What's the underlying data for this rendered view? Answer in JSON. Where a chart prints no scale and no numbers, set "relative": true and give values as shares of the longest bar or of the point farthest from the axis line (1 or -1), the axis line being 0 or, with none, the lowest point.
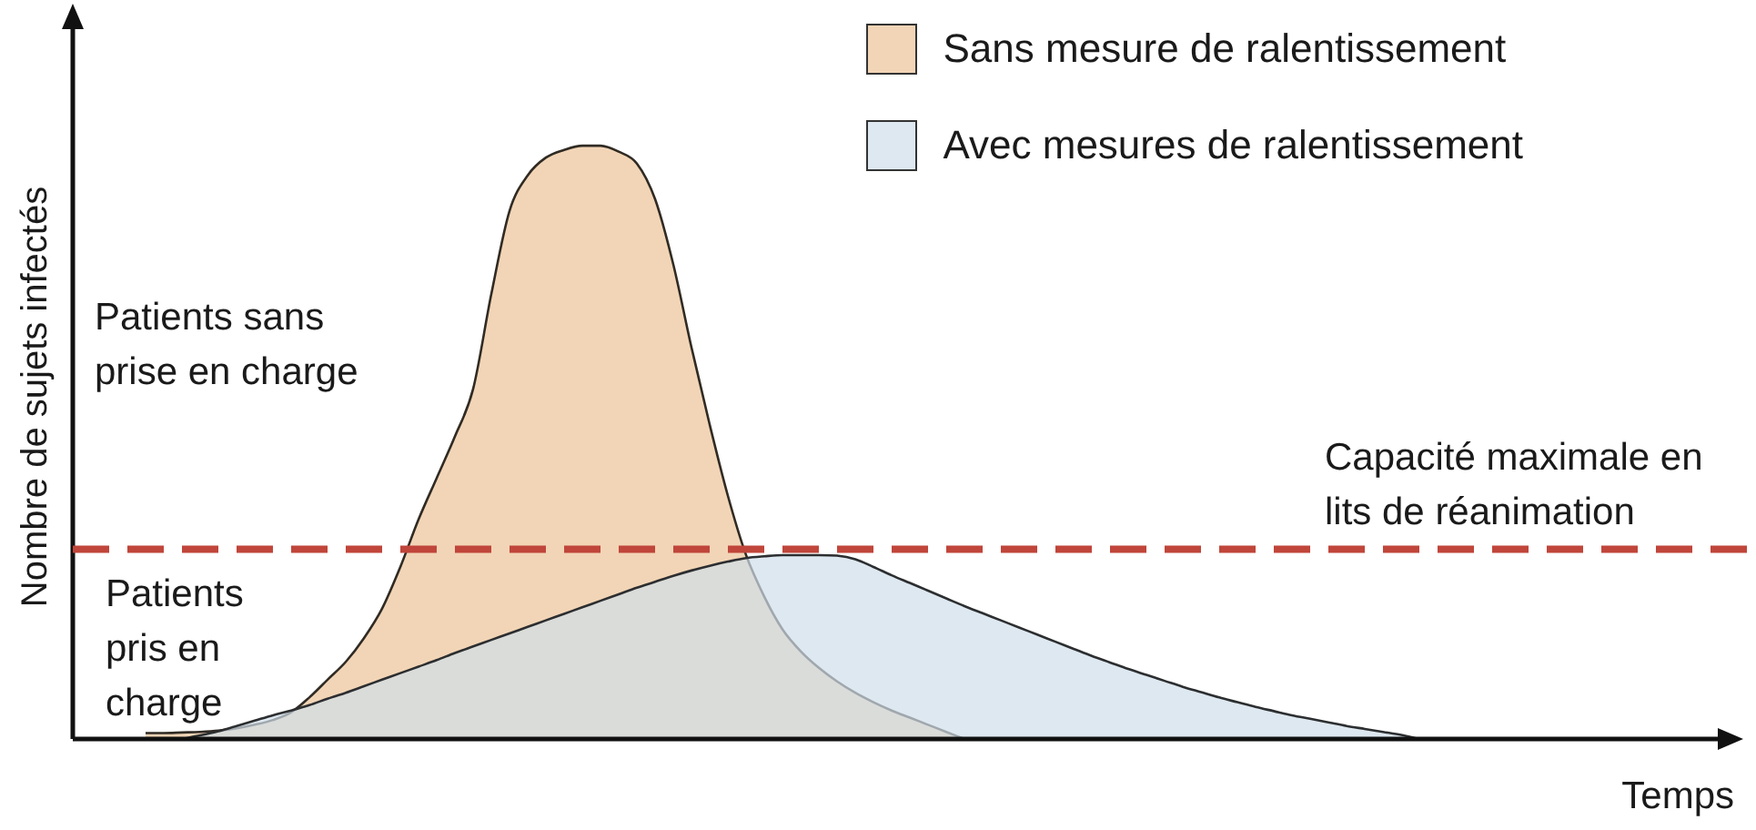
{
  "chart_data": {
    "type": "area",
    "relative": true,
    "categories": [
      null,
      null,
      null,
      null,
      null,
      null,
      null,
      null,
      null,
      null,
      null,
      null,
      null,
      null,
      null,
      null,
      null,
      null,
      null,
      null,
      null,
      null,
      null,
      null,
      null,
      null,
      null,
      null,
      null,
      null,
      null,
      null,
      null,
      null,
      null,
      null,
      null,
      null,
      null,
      null,
      null,
      null,
      null,
      null,
      null,
      null,
      null,
      null,
      null,
      null,
      null,
      null,
      null,
      null,
      null,
      null,
      null,
      null,
      null,
      null,
      null,
      null,
      null,
      null,
      null,
      null,
      null,
      null,
      null,
      null,
      null,
      null,
      null,
      null,
      null,
      null,
      null,
      null,
      null,
      null,
      null,
      null,
      null,
      null,
      null,
      null,
      null,
      null,
      null,
      null,
      null,
      null
    ],
    "series": [
      {
        "name": "Sans mesure de ralentissement",
        "color": "#f2d5b6",
        "values": [
          null,
          null,
          null,
          null,
          0.01,
          0.01,
          0.011,
          0.012,
          0.014,
          0.018,
          0.024,
          0.032,
          0.045,
          0.07,
          0.1,
          0.13,
          0.17,
          0.22,
          0.29,
          0.37,
          0.44,
          0.51,
          0.59,
          0.75,
          0.89,
          0.95,
          0.98,
          0.993,
          1,
          1,
          0.99,
          0.97,
          0.91,
          0.8,
          0.66,
          0.53,
          0.41,
          0.31,
          0.24,
          0.185,
          0.148,
          0.12,
          0.097,
          0.078,
          0.062,
          0.048,
          0.036,
          0.024,
          0.012,
          0,
          null,
          null,
          null,
          null,
          null,
          null,
          null,
          null,
          null,
          null,
          null,
          null,
          null,
          null,
          null,
          null,
          null,
          null,
          null,
          null,
          null,
          null,
          null,
          null,
          null,
          null,
          null,
          null,
          null,
          null,
          null,
          null,
          null,
          null,
          null,
          null,
          null,
          null,
          null,
          null,
          null,
          null
        ]
      },
      {
        "name": "Avec mesures de ralentissement",
        "color": "#dee8f0",
        "values": [
          null,
          null,
          null,
          null,
          null,
          null,
          0,
          0.006,
          0.013,
          0.022,
          0.031,
          0.04,
          0.048,
          0.057,
          0.068,
          0.078,
          0.089,
          0.1,
          0.111,
          0.122,
          0.133,
          0.145,
          0.156,
          0.167,
          0.178,
          0.189,
          0.2,
          0.211,
          0.222,
          0.233,
          0.244,
          0.255,
          0.265,
          0.275,
          0.284,
          0.292,
          0.299,
          0.305,
          0.308,
          0.31,
          0.31,
          0.31,
          0.309,
          0.303,
          0.29,
          0.276,
          0.263,
          0.25,
          0.237,
          0.224,
          0.212,
          0.2,
          0.188,
          0.176,
          0.164,
          0.152,
          0.14,
          0.129,
          0.118,
          0.108,
          0.098,
          0.088,
          0.079,
          0.07,
          0.062,
          0.054,
          0.047,
          0.04,
          0.034,
          0.028,
          0.022,
          0.017,
          0.012,
          0.007,
          0,
          null,
          null,
          null,
          null,
          null,
          null,
          null,
          null,
          null,
          null,
          null,
          null,
          null,
          null,
          null,
          null,
          null
        ]
      }
    ],
    "xlabel": "Temps",
    "ylabel": "Nombre de sujets infectés",
    "annotations": [
      "Patients sans prise en charge",
      "Patients pris en charge"
    ],
    "ref_lines": [
      {
        "axis": "y",
        "value": 0.32,
        "label": "Capacité maximale en lits de réanimation",
        "color": "#c0453a",
        "line_style": "dashed"
      }
    ],
    "legend": "top right"
  }
}
